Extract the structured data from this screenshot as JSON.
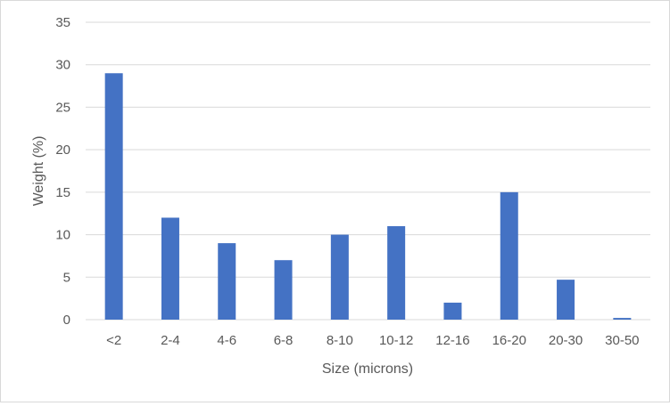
{
  "chart_data": {
    "type": "bar",
    "title": "",
    "xlabel": "Size (microns)",
    "ylabel": "Weight (%)",
    "ylim": [
      0,
      35
    ],
    "yticks": [
      0,
      5,
      10,
      15,
      20,
      25,
      30,
      35
    ],
    "grid": true,
    "legend": "none",
    "categories": [
      "<2",
      "2-4",
      "4-6",
      "6-8",
      "8-10",
      "10-12",
      "12-16",
      "16-20",
      "20-30",
      "30-50"
    ],
    "values": [
      29,
      12,
      9,
      7,
      10,
      11,
      2,
      15,
      4.7,
      0.2
    ],
    "bar_color": "#4472c4",
    "grid_color": "#d9d9d9",
    "text_color": "#595959"
  }
}
